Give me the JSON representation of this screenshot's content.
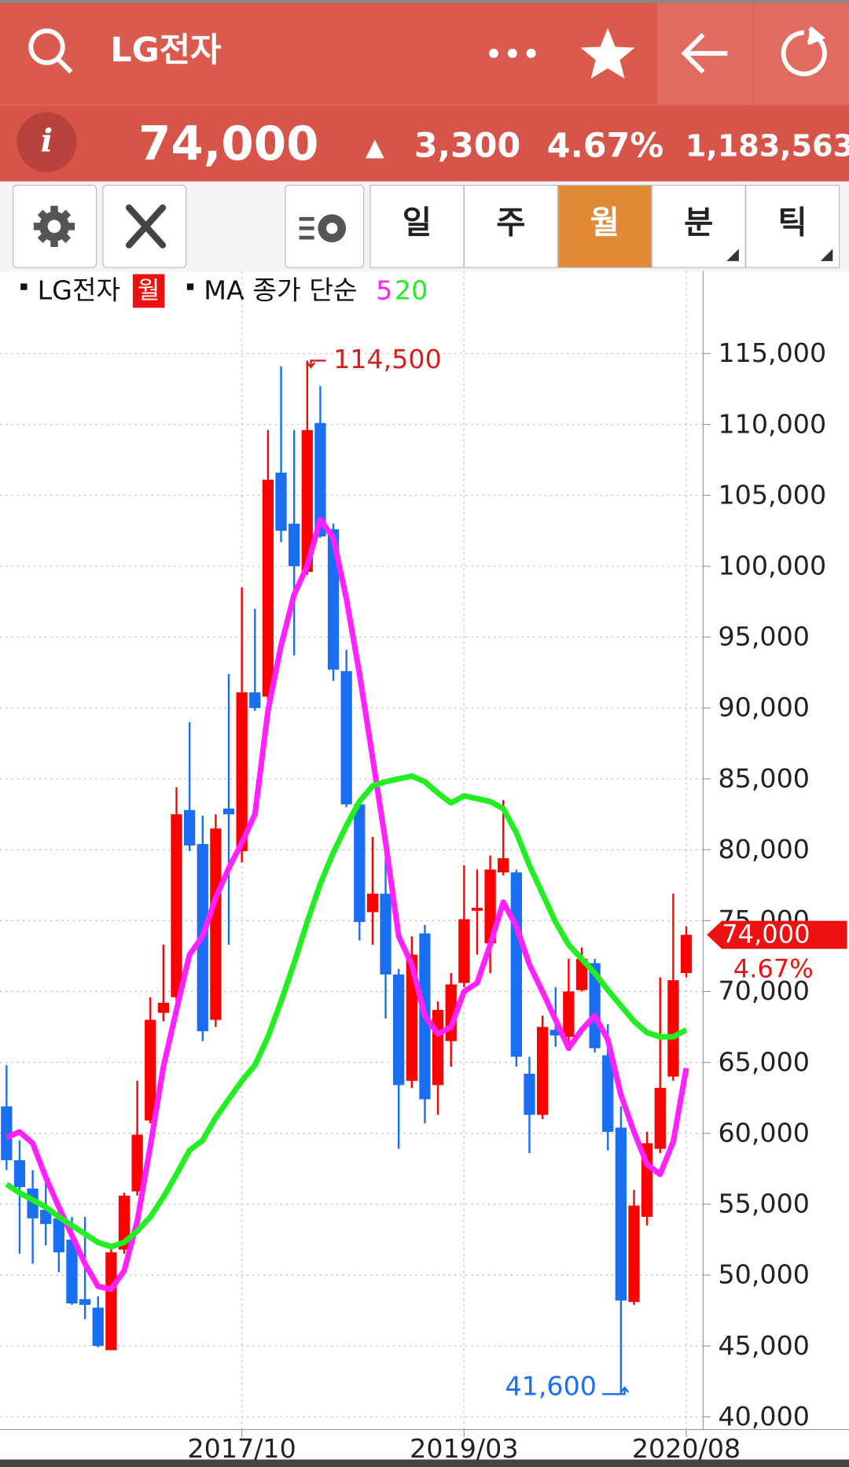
{
  "header": {
    "title": "LG전자",
    "price": "74,000",
    "change_symbol": "▲",
    "change": "3,300",
    "change_rate": "4.67%",
    "volume": "1,183,563"
  },
  "tabs": [
    "일",
    "주",
    "월",
    "분",
    "틱"
  ],
  "active_tab": 2,
  "chart_data": {
    "type": "candlestick",
    "period_badge": "월",
    "ma_label": "MA 종가 단순",
    "x": [
      "2016/04",
      "2016/05",
      "2016/06",
      "2016/07",
      "2016/08",
      "2016/09",
      "2016/10",
      "2016/11",
      "2016/12",
      "2017/01",
      "2017/02",
      "2017/03",
      "2017/04",
      "2017/05",
      "2017/06",
      "2017/07",
      "2017/08",
      "2017/09",
      "2017/10",
      "2017/11",
      "2017/12",
      "2018/01",
      "2018/02",
      "2018/03",
      "2018/04",
      "2018/05",
      "2018/06",
      "2018/07",
      "2018/08",
      "2018/09",
      "2018/10",
      "2018/11",
      "2018/12",
      "2019/01",
      "2019/02",
      "2019/03",
      "2019/04",
      "2019/05",
      "2019/06",
      "2019/07",
      "2019/08",
      "2019/09",
      "2019/10",
      "2019/11",
      "2019/12",
      "2020/01",
      "2020/02",
      "2020/03",
      "2020/04",
      "2020/05",
      "2020/06",
      "2020/07",
      "2020/08"
    ],
    "series": [
      {
        "name": "LG전자",
        "up_color": "#ff0000",
        "down_color": "#1a6ef2",
        "open": [
          61900,
          58100,
          56100,
          54600,
          54000,
          52500,
          48300,
          47700,
          44700,
          51800,
          55900,
          60900,
          68500,
          69600,
          82800,
          80400,
          68000,
          82900,
          79900,
          91100,
          90800,
          106600,
          103000,
          99600,
          110100,
          102600,
          92600,
          83200,
          75600,
          76900,
          71200,
          63700,
          74100,
          63400,
          66500,
          70600,
          75700,
          73400,
          78400,
          78400,
          64200,
          61300,
          67300,
          66800,
          70100,
          72000,
          65500,
          60400,
          48100,
          54100,
          58900,
          64000,
          71300
        ],
        "high": [
          64800,
          59500,
          57400,
          57400,
          54800,
          54100,
          54100,
          48500,
          51800,
          55800,
          63700,
          69600,
          73300,
          84400,
          89000,
          82400,
          82500,
          92400,
          98500,
          97000,
          109600,
          114100,
          109600,
          114500,
          112700,
          103000,
          94100,
          83300,
          80900,
          79400,
          71600,
          73900,
          74700,
          69300,
          71300,
          78900,
          78600,
          79600,
          83500,
          78600,
          65400,
          68300,
          70300,
          72300,
          73100,
          72300,
          67700,
          61900,
          56000,
          60100,
          71000,
          76900,
          74600
        ],
        "low": [
          57400,
          51500,
          50800,
          52100,
          50200,
          47900,
          46900,
          44900,
          44700,
          51500,
          55600,
          60700,
          67900,
          69300,
          79900,
          66500,
          67500,
          73300,
          79100,
          89800,
          90400,
          101700,
          93700,
          99400,
          102000,
          91900,
          83000,
          73600,
          73300,
          68100,
          58900,
          63200,
          60700,
          61300,
          64700,
          70300,
          72600,
          71300,
          78200,
          64700,
          58600,
          61000,
          66100,
          66000,
          70000,
          65700,
          58800,
          41600,
          47900,
          53500,
          58600,
          63700,
          71000
        ],
        "close": [
          58100,
          56200,
          54000,
          53600,
          51600,
          48000,
          47900,
          45000,
          51600,
          55600,
          59900,
          68000,
          69200,
          82500,
          80300,
          67200,
          81500,
          82500,
          91100,
          90000,
          106100,
          102500,
          100000,
          109600,
          102100,
          92700,
          83200,
          74900,
          76900,
          71200,
          63400,
          72600,
          62400,
          68700,
          70500,
          75100,
          75900,
          78600,
          79400,
          65400,
          61300,
          67500,
          66900,
          70000,
          72300,
          66000,
          60100,
          48200,
          54900,
          59300,
          63200,
          70800,
          74000
        ]
      },
      {
        "name": "5",
        "color": "#ff22ff",
        "values": [
          59700,
          60100,
          59300,
          56900,
          54800,
          52800,
          50800,
          49200,
          49000,
          50300,
          53800,
          59100,
          64700,
          68700,
          72600,
          73900,
          76600,
          78700,
          80500,
          82500,
          89800,
          94400,
          98000,
          100000,
          103300,
          102000,
          97700,
          92400,
          86500,
          80500,
          73900,
          71900,
          68300,
          67000,
          67500,
          70000,
          70600,
          73300,
          76300,
          74600,
          71900,
          70000,
          68000,
          66000,
          67300,
          68300,
          66600,
          62700,
          60100,
          57800,
          57100,
          59400,
          64600
        ]
      },
      {
        "name": "20",
        "color": "#22ee22",
        "values": [
          56400,
          55800,
          55300,
          54800,
          54100,
          53500,
          52900,
          52300,
          52000,
          52300,
          53100,
          54100,
          55500,
          57100,
          58800,
          59500,
          61100,
          62400,
          63700,
          64800,
          66800,
          69300,
          72000,
          74900,
          77600,
          79800,
          81700,
          83400,
          84500,
          84800,
          85000,
          85200,
          84800,
          84000,
          83300,
          83800,
          83600,
          83400,
          82900,
          81200,
          78900,
          76900,
          74900,
          73300,
          72300,
          71300,
          70100,
          69000,
          67900,
          67100,
          66800,
          66800,
          67300
        ]
      }
    ],
    "ylim": [
      39100,
      120800
    ],
    "yticks": [
      {
        "value": 40000,
        "label": "40,000"
      },
      {
        "value": 45000,
        "label": "45,000"
      },
      {
        "value": 50000,
        "label": "50,000"
      },
      {
        "value": 55000,
        "label": "55,000"
      },
      {
        "value": 60000,
        "label": "60,000"
      },
      {
        "value": 65000,
        "label": "65,000"
      },
      {
        "value": 70000,
        "label": "70,000"
      },
      {
        "value": 75000,
        "label": "75,000"
      },
      {
        "value": 80000,
        "label": "80,000"
      },
      {
        "value": 85000,
        "label": "85,000"
      },
      {
        "value": 90000,
        "label": "90,000"
      },
      {
        "value": 95000,
        "label": "95,000"
      },
      {
        "value": 100000,
        "label": "100,000"
      },
      {
        "value": 105000,
        "label": "105,000"
      },
      {
        "value": 110000,
        "label": "110,000"
      },
      {
        "value": 115000,
        "label": "115,000"
      }
    ],
    "xticks": [
      "2017/10",
      "2019/03",
      "2020/08"
    ],
    "grid": true,
    "annotations": [
      {
        "x": "2018/03",
        "value": 114500,
        "label": "114,500",
        "color": "#d42020",
        "side": "high"
      },
      {
        "x": "2020/03",
        "value": 41600,
        "label": "41,600",
        "color": "#1a6ef2",
        "side": "low"
      }
    ],
    "last": {
      "value": 74000,
      "label": "74,000",
      "rate": "4.67%",
      "color": "#ee1111"
    }
  }
}
